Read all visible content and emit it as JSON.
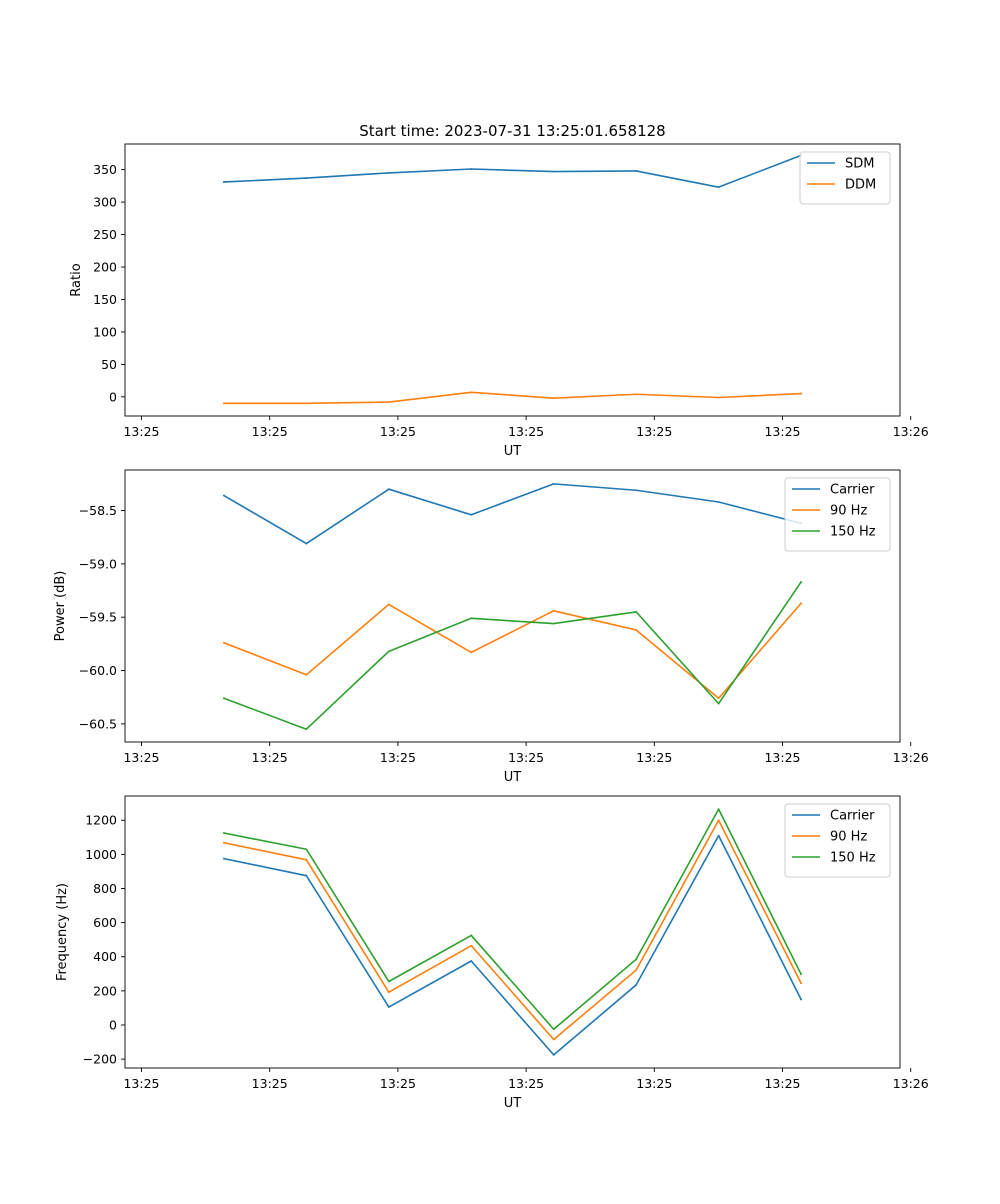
{
  "figure": {
    "title": "Start time: 2023-07-31 13:25:01.658128"
  },
  "chart_data": [
    {
      "type": "line",
      "title": "Start time: 2023-07-31 13:25:01.658128",
      "xlabel": "UT",
      "ylabel": "Ratio",
      "x": [
        1,
        2,
        3,
        4,
        5,
        6,
        7,
        8
      ],
      "xlim": [
        -0.2,
        9.2
      ],
      "xticks": [
        0,
        1.555,
        3.11,
        4.665,
        6.22,
        7.775,
        9.33
      ],
      "xtick_labels": [
        "13:25",
        "13:25",
        "13:25",
        "13:25",
        "13:25",
        "13:25",
        "13:26"
      ],
      "ylim": [
        -29.5,
        389.5
      ],
      "yticks": [
        0,
        50,
        100,
        150,
        200,
        250,
        300,
        350
      ],
      "ytick_labels": [
        "0",
        "50",
        "100",
        "150",
        "200",
        "250",
        "300",
        "350"
      ],
      "legend": "top-right",
      "series": [
        {
          "name": "SDM",
          "color": "#1f77b4",
          "values": [
            331,
            337,
            345,
            351,
            347,
            348,
            323,
            372
          ]
        },
        {
          "name": "DDM",
          "color": "#ff7f0e",
          "values": [
            -10,
            -10,
            -8,
            7,
            -2,
            4,
            -1,
            5
          ]
        }
      ]
    },
    {
      "type": "line",
      "title": "",
      "xlabel": "UT",
      "ylabel": "Power (dB)",
      "x": [
        1,
        2,
        3,
        4,
        5,
        6,
        7,
        8
      ],
      "xlim": [
        -0.2,
        9.2
      ],
      "xticks": [
        0,
        1.555,
        3.11,
        4.665,
        6.22,
        7.775,
        9.33
      ],
      "xtick_labels": [
        "13:25",
        "13:25",
        "13:25",
        "13:25",
        "13:25",
        "13:25",
        "13:26"
      ],
      "ylim": [
        -60.67,
        -58.12
      ],
      "yticks": [
        -60.5,
        -60.0,
        -59.5,
        -59.0,
        -58.5
      ],
      "ytick_labels": [
        "−60.5",
        "−60.0",
        "−59.5",
        "−59.0",
        "−58.5"
      ],
      "legend": "top-right",
      "series": [
        {
          "name": "Carrier",
          "color": "#1f77b4",
          "values": [
            -58.36,
            -58.81,
            -58.3,
            -58.54,
            -58.25,
            -58.31,
            -58.42,
            -58.62
          ]
        },
        {
          "name": "90 Hz",
          "color": "#ff7f0e",
          "values": [
            -59.74,
            -60.04,
            -59.38,
            -59.83,
            -59.44,
            -59.62,
            -60.26,
            -59.37
          ]
        },
        {
          "name": "150 Hz",
          "color": "#2ca02c",
          "values": [
            -60.26,
            -60.55,
            -59.82,
            -59.51,
            -59.56,
            -59.45,
            -60.31,
            -59.17
          ]
        }
      ]
    },
    {
      "type": "line",
      "title": "",
      "xlabel": "UT",
      "ylabel": "Frequency (Hz)",
      "x": [
        1,
        2,
        3,
        4,
        5,
        6,
        7,
        8
      ],
      "xlim": [
        -0.2,
        9.2
      ],
      "xticks": [
        0,
        1.555,
        3.11,
        4.665,
        6.22,
        7.775,
        9.33
      ],
      "xtick_labels": [
        "13:25",
        "13:25",
        "13:25",
        "13:25",
        "13:25",
        "13:25",
        "13:26"
      ],
      "ylim": [
        -252,
        1342
      ],
      "yticks": [
        -200,
        0,
        200,
        400,
        600,
        800,
        1000,
        1200
      ],
      "ytick_labels": [
        "−200",
        "0",
        "200",
        "400",
        "600",
        "800",
        "1000",
        "1200"
      ],
      "legend": "top-right",
      "series": [
        {
          "name": "Carrier",
          "color": "#1f77b4",
          "values": [
            975,
            875,
            105,
            375,
            -175,
            235,
            1110,
            150
          ]
        },
        {
          "name": "90 Hz",
          "color": "#ff7f0e",
          "values": [
            1068,
            968,
            192,
            465,
            -85,
            322,
            1200,
            245
          ]
        },
        {
          "name": "150 Hz",
          "color": "#2ca02c",
          "values": [
            1125,
            1030,
            255,
            525,
            -25,
            385,
            1265,
            298
          ]
        }
      ]
    }
  ]
}
